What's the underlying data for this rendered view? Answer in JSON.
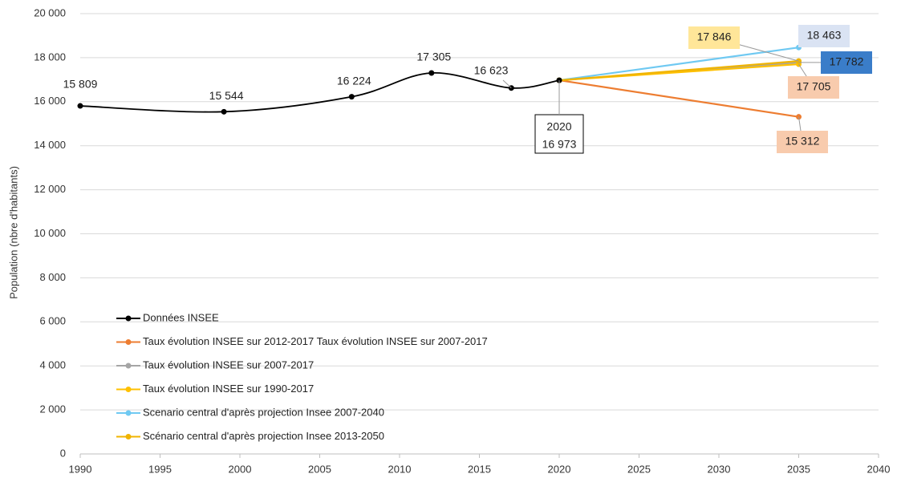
{
  "chart_data": {
    "type": "line",
    "y_label": "Population (nbre d'habitants)",
    "xlim": [
      1990,
      2040
    ],
    "xticks": [
      1990,
      1995,
      2000,
      2005,
      2010,
      2015,
      2020,
      2025,
      2030,
      2035,
      2040
    ],
    "ylim": [
      0,
      20000
    ],
    "yticks": [
      0,
      {
        "value": 2000,
        "label": "2 000"
      },
      {
        "value": 4000,
        "label": "4 000"
      },
      {
        "value": 6000,
        "label": "6 000"
      },
      {
        "value": 8000,
        "label": "8 000"
      },
      {
        "value": 10000,
        "label": "10 000"
      },
      {
        "value": 12000,
        "label": "12 000"
      },
      {
        "value": 14000,
        "label": "14 000"
      },
      {
        "value": 16000,
        "label": "16 000"
      },
      {
        "value": 18000,
        "label": "18 000"
      },
      {
        "value": 20000,
        "label": "20 000"
      }
    ],
    "grid": true,
    "legend": "lower left",
    "annotation": "2020",
    "series": [
      {
        "name": "Données INSEE",
        "color": "#000000",
        "smooth": true,
        "x": [
          1990,
          1999,
          2007,
          2012,
          2017,
          2020
        ],
        "values": [
          15809,
          15544,
          16224,
          17305,
          16623,
          16973
        ],
        "value_labels": [
          "15 809",
          "15 544",
          "16 224",
          "17 305",
          "16 623",
          "16 973"
        ]
      },
      {
        "name": "Taux évolution INSEE sur 2012-2017 Taux évolution INSEE sur 2007-2017",
        "color": "#ed7d31",
        "x": [
          2020,
          2035
        ],
        "values": [
          16973,
          15312
        ],
        "value_labels": [
          null,
          "15 312"
        ]
      },
      {
        "name": "Taux évolution INSEE sur 2007-2017",
        "color": "#a5a5a5",
        "x": [
          2020,
          2035
        ],
        "values": [
          16973,
          17782
        ],
        "value_labels": [
          null,
          "17 782"
        ]
      },
      {
        "name": "Taux évolution INSEE sur 1990-2017",
        "color": "#ffc000",
        "x": [
          2020,
          2035
        ],
        "values": [
          16973,
          17705
        ],
        "value_labels": [
          null,
          "17 705"
        ]
      },
      {
        "name": "Scenario central d'après projection Insee 2007-2040",
        "color": "#6fc9f2",
        "x": [
          2020,
          2035
        ],
        "values": [
          16973,
          18463
        ],
        "value_labels": [
          null,
          "18 463"
        ]
      },
      {
        "name": "Scénario central d'après projection Insee 2013-2050",
        "color": "#f0b400",
        "x": [
          2020,
          2035
        ],
        "values": [
          16973,
          17846
        ],
        "value_labels": [
          null,
          "17 846"
        ]
      }
    ]
  }
}
